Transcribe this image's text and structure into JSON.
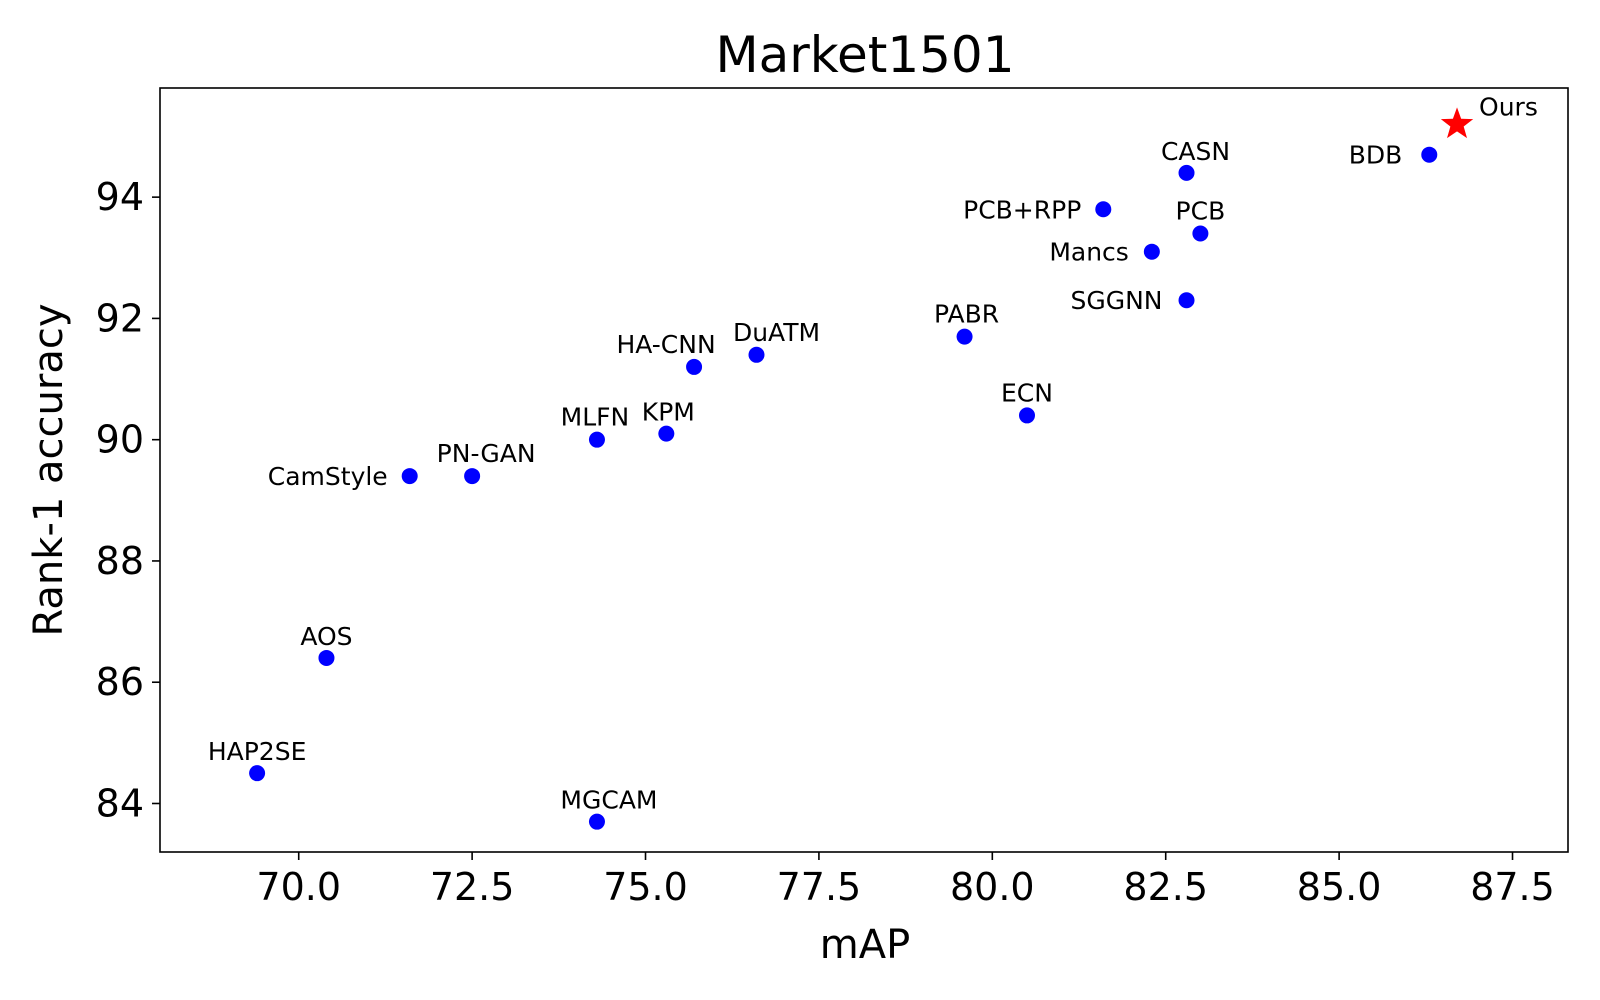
{
  "chart_data": {
    "type": "scatter",
    "title": "Market1501",
    "xlabel": "mAP",
    "ylabel": "Rank-1 accuracy",
    "xlim": [
      68.0,
      88.3
    ],
    "ylim": [
      83.2,
      95.8
    ],
    "xticks": [
      70.0,
      72.5,
      75.0,
      77.5,
      80.0,
      82.5,
      85.0,
      87.5
    ],
    "xtick_labels": [
      "70.0",
      "72.5",
      "75.0",
      "77.5",
      "80.0",
      "82.5",
      "85.0",
      "87.5"
    ],
    "yticks": [
      84,
      86,
      88,
      90,
      92,
      94
    ],
    "ytick_labels": [
      "84",
      "86",
      "88",
      "90",
      "92",
      "94"
    ],
    "grid": false,
    "colors": {
      "point": "#0000ff",
      "highlight": "#ff0000"
    },
    "points": [
      {
        "name": "HAP2SE",
        "x": 69.4,
        "y": 84.5,
        "marker": "circle"
      },
      {
        "name": "AOS",
        "x": 70.4,
        "y": 86.4,
        "marker": "circle"
      },
      {
        "name": "CamStyle",
        "x": 71.6,
        "y": 89.4,
        "marker": "circle"
      },
      {
        "name": "PN-GAN",
        "x": 72.5,
        "y": 89.4,
        "marker": "circle"
      },
      {
        "name": "MGCAM",
        "x": 74.3,
        "y": 83.7,
        "marker": "circle"
      },
      {
        "name": "MLFN",
        "x": 74.3,
        "y": 90.0,
        "marker": "circle"
      },
      {
        "name": "KPM",
        "x": 75.3,
        "y": 90.1,
        "marker": "circle"
      },
      {
        "name": "HA-CNN",
        "x": 75.7,
        "y": 91.2,
        "marker": "circle"
      },
      {
        "name": "DuATM",
        "x": 76.6,
        "y": 91.4,
        "marker": "circle"
      },
      {
        "name": "PABR",
        "x": 79.6,
        "y": 91.7,
        "marker": "circle"
      },
      {
        "name": "ECN",
        "x": 80.5,
        "y": 90.4,
        "marker": "circle"
      },
      {
        "name": "PCB+RPP",
        "x": 81.6,
        "y": 93.8,
        "marker": "circle"
      },
      {
        "name": "Mancs",
        "x": 82.3,
        "y": 93.1,
        "marker": "circle"
      },
      {
        "name": "SGGNN",
        "x": 82.8,
        "y": 92.3,
        "marker": "circle"
      },
      {
        "name": "CASN",
        "x": 82.8,
        "y": 94.4,
        "marker": "circle"
      },
      {
        "name": "PCB",
        "x": 83.0,
        "y": 93.4,
        "marker": "circle"
      },
      {
        "name": "BDB",
        "x": 86.3,
        "y": 94.7,
        "marker": "circle"
      },
      {
        "name": "Ours",
        "x": 86.7,
        "y": 95.2,
        "marker": "star"
      }
    ]
  }
}
